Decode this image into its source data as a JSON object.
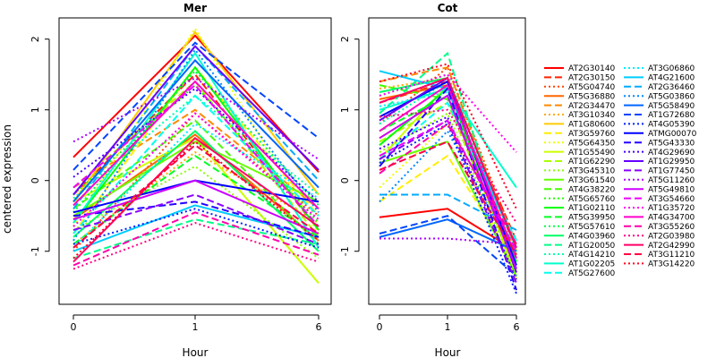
{
  "chart_data": [
    {
      "type": "line",
      "title": "Mer",
      "xlabel": "Hour",
      "ylabel": "centered expression",
      "categories": [
        "0",
        "1",
        "6"
      ],
      "ylim": [
        -1.75,
        2.3
      ],
      "yticks": [
        "-1",
        "0",
        "1",
        "2"
      ],
      "series": [
        {
          "name": "AT2G30140",
          "values": [
            0.33,
            2.05,
            0.12
          ]
        },
        {
          "name": "AT2G30150",
          "values": [
            -0.2,
            1.5,
            -0.7
          ]
        },
        {
          "name": "AT5G04740",
          "values": [
            -1.0,
            0.95,
            -0.5
          ]
        },
        {
          "name": "AT5G36880",
          "values": [
            -0.55,
            0.65,
            -0.85
          ]
        },
        {
          "name": "AT2G34470",
          "values": [
            -0.1,
            1.0,
            -0.4
          ]
        },
        {
          "name": "AT3G10340",
          "values": [
            -0.9,
            0.4,
            -0.6
          ]
        },
        {
          "name": "AT1G80600",
          "values": [
            -0.3,
            2.1,
            -0.2
          ]
        },
        {
          "name": "AT3G59760",
          "values": [
            -0.75,
            1.6,
            -0.5
          ]
        },
        {
          "name": "AT5G64350",
          "values": [
            -0.65,
            2.15,
            -0.75
          ]
        },
        {
          "name": "AT1G55490",
          "values": [
            -0.3,
            0.6,
            -1.45
          ]
        },
        {
          "name": "AT1G62290",
          "values": [
            -0.1,
            1.4,
            -0.8
          ]
        },
        {
          "name": "AT3G45310",
          "values": [
            -0.7,
            0.2,
            -1.1
          ]
        },
        {
          "name": "AT3G61540",
          "values": [
            -0.5,
            0.55,
            -0.3
          ]
        },
        {
          "name": "AT4G38220",
          "values": [
            -0.4,
            0.85,
            -0.9
          ]
        },
        {
          "name": "AT5G65760",
          "values": [
            -0.2,
            1.35,
            -0.6
          ]
        },
        {
          "name": "AT1G02110",
          "values": [
            -0.6,
            1.6,
            -0.7
          ]
        },
        {
          "name": "AT5G39950",
          "values": [
            -0.9,
            0.35,
            -0.8
          ]
        },
        {
          "name": "AT5G57610",
          "values": [
            -0.45,
            1.55,
            -0.35
          ]
        },
        {
          "name": "AT4G03960",
          "values": [
            -0.8,
            0.7,
            -1.0
          ]
        },
        {
          "name": "AT1G20050",
          "values": [
            -1.1,
            -0.55,
            -0.9
          ]
        },
        {
          "name": "AT4G14210",
          "values": [
            -0.25,
            1.2,
            -0.2
          ]
        },
        {
          "name": "AT1G02205",
          "values": [
            -0.6,
            1.8,
            -0.95
          ]
        },
        {
          "name": "AT5G27600",
          "values": [
            -0.75,
            1.2,
            -0.5
          ]
        },
        {
          "name": "AT3G06860",
          "values": [
            -0.95,
            0.8,
            -0.25
          ]
        },
        {
          "name": "AT4G21600",
          "values": [
            -1.0,
            -0.35,
            -0.8
          ]
        },
        {
          "name": "AT2G36460",
          "values": [
            -0.4,
            1.9,
            0.0
          ]
        },
        {
          "name": "AT5G03860",
          "values": [
            -0.85,
            1.85,
            -0.45
          ]
        },
        {
          "name": "AT5G58490",
          "values": [
            -0.3,
            1.7,
            -0.1
          ]
        },
        {
          "name": "AT1G72680",
          "values": [
            0.15,
            1.95,
            0.6
          ]
        },
        {
          "name": "AT4G05390",
          "values": [
            -0.9,
            -0.4,
            -0.95
          ]
        },
        {
          "name": "ATMG00070",
          "values": [
            -0.45,
            0.0,
            -0.3
          ]
        },
        {
          "name": "AT5G43330",
          "values": [
            -0.5,
            -0.3,
            -0.8
          ]
        },
        {
          "name": "AT4G29690",
          "values": [
            0.05,
            1.3,
            -0.3
          ]
        },
        {
          "name": "AT1G29950",
          "values": [
            -0.2,
            1.9,
            0.15
          ]
        },
        {
          "name": "AT1G77450",
          "values": [
            -0.7,
            -0.2,
            -0.9
          ]
        },
        {
          "name": "AT5G11260",
          "values": [
            0.55,
            1.45,
            0.3
          ]
        },
        {
          "name": "AT5G49810",
          "values": [
            -0.55,
            0.0,
            -0.75
          ]
        },
        {
          "name": "AT3G54660",
          "values": [
            -0.1,
            1.35,
            -0.65
          ]
        },
        {
          "name": "AT1G35720",
          "values": [
            -0.65,
            0.95,
            -0.55
          ]
        },
        {
          "name": "AT4G34700",
          "values": [
            -0.35,
            1.4,
            -0.4
          ]
        },
        {
          "name": "AT3G55260",
          "values": [
            -1.2,
            -0.45,
            -1.05
          ]
        },
        {
          "name": "AT2G03980",
          "values": [
            -1.25,
            -0.6,
            -1.15
          ]
        },
        {
          "name": "AT2G42990",
          "values": [
            -1.15,
            0.6,
            -0.65
          ]
        },
        {
          "name": "AT3G11210",
          "values": [
            -0.95,
            0.5,
            -0.75
          ]
        },
        {
          "name": "AT3G14220",
          "values": [
            -1.1,
            0.55,
            -0.85
          ]
        }
      ]
    },
    {
      "type": "line",
      "title": "Cot",
      "xlabel": "Hour",
      "categories": [
        "0",
        "1",
        "6"
      ],
      "ylim": [
        -1.75,
        2.3
      ],
      "yticks": [
        "-1",
        "0",
        "1",
        "2"
      ],
      "series": [
        {
          "name": "AT2G30140",
          "values": [
            -0.52,
            -0.4,
            -1.0
          ]
        },
        {
          "name": "AT2G30150",
          "values": [
            1.1,
            1.4,
            -0.85
          ]
        },
        {
          "name": "AT5G04740",
          "values": [
            0.8,
            1.6,
            -0.9
          ]
        },
        {
          "name": "AT5G36880",
          "values": [
            1.15,
            1.35,
            -1.1
          ]
        },
        {
          "name": "AT2G34470",
          "values": [
            1.4,
            1.6,
            -1.0
          ]
        },
        {
          "name": "AT3G10340",
          "values": [
            1.3,
            1.45,
            -1.05
          ]
        },
        {
          "name": "AT1G80600",
          "values": [
            0.6,
            1.2,
            -1.3
          ]
        },
        {
          "name": "AT3G59760",
          "values": [
            -0.3,
            0.35,
            -1.2
          ]
        },
        {
          "name": "AT5G64350",
          "values": [
            -0.1,
            0.8,
            -1.35
          ]
        },
        {
          "name": "AT1G55490",
          "values": [
            0.3,
            1.35,
            -1.4
          ]
        },
        {
          "name": "AT1G62290",
          "values": [
            0.55,
            1.1,
            -1.25
          ]
        },
        {
          "name": "AT3G45310",
          "values": [
            0.4,
            0.95,
            -1.3
          ]
        },
        {
          "name": "AT3G61540",
          "values": [
            0.25,
            0.55,
            -1.35
          ]
        },
        {
          "name": "AT4G38220",
          "values": [
            1.35,
            1.15,
            -1.05
          ]
        },
        {
          "name": "AT5G65760",
          "values": [
            0.9,
            1.4,
            -1.2
          ]
        },
        {
          "name": "AT1G02110",
          "values": [
            0.5,
            1.3,
            -1.15
          ]
        },
        {
          "name": "AT5G39950",
          "values": [
            0.7,
            1.2,
            -1.1
          ]
        },
        {
          "name": "AT5G57610",
          "values": [
            1.2,
            1.5,
            -1.0
          ]
        },
        {
          "name": "AT4G03960",
          "values": [
            1.25,
            1.45,
            -0.95
          ]
        },
        {
          "name": "AT1G20050",
          "values": [
            0.95,
            1.8,
            -1.25
          ]
        },
        {
          "name": "AT4G14210",
          "values": [
            0.8,
            1.4,
            -1.15
          ]
        },
        {
          "name": "AT1G02205",
          "values": [
            1.0,
            1.3,
            -0.1
          ]
        },
        {
          "name": "AT5G27600",
          "values": [
            0.3,
            1.1,
            -0.85
          ]
        },
        {
          "name": "AT3G06860",
          "values": [
            1.05,
            1.25,
            -0.9
          ]
        },
        {
          "name": "AT4G21600",
          "values": [
            1.55,
            1.3,
            -0.95
          ]
        },
        {
          "name": "AT2G36460",
          "values": [
            -0.2,
            -0.2,
            -0.7
          ]
        },
        {
          "name": "AT5G03860",
          "values": [
            -0.3,
            0.7,
            -1.1
          ]
        },
        {
          "name": "AT5G58490",
          "values": [
            -0.8,
            -0.55,
            -1.0
          ]
        },
        {
          "name": "AT1G72680",
          "values": [
            -0.75,
            -0.5,
            -1.35
          ]
        },
        {
          "name": "AT4G05390",
          "values": [
            0.25,
            0.8,
            -1.6
          ]
        },
        {
          "name": "ATMG00070",
          "values": [
            0.9,
            1.4,
            -1.2
          ]
        },
        {
          "name": "AT5G43330",
          "values": [
            0.2,
            1.3,
            -1.55
          ]
        },
        {
          "name": "AT4G29690",
          "values": [
            0.45,
            0.9,
            -1.4
          ]
        },
        {
          "name": "AT1G29950",
          "values": [
            0.85,
            1.45,
            -1.3
          ]
        },
        {
          "name": "AT1G77450",
          "values": [
            0.3,
            0.85,
            -1.45
          ]
        },
        {
          "name": "AT5G11260",
          "values": [
            -0.82,
            -0.82,
            -0.9
          ]
        },
        {
          "name": "AT5G49810",
          "values": [
            0.6,
            1.2,
            -1.25
          ]
        },
        {
          "name": "AT3G54660",
          "values": [
            0.35,
            0.85,
            -1.0
          ]
        },
        {
          "name": "AT1G35720",
          "values": [
            1.2,
            1.5,
            0.4
          ]
        },
        {
          "name": "AT4G34700",
          "values": [
            0.7,
            1.35,
            -1.1
          ]
        },
        {
          "name": "AT3G55260",
          "values": [
            0.1,
            0.8,
            -0.9
          ]
        },
        {
          "name": "AT2G03980",
          "values": [
            0.9,
            1.0,
            -0.6
          ]
        },
        {
          "name": "AT2G42990",
          "values": [
            1.1,
            1.45,
            -0.95
          ]
        },
        {
          "name": "AT3G11210",
          "values": [
            0.15,
            0.55,
            -1.05
          ]
        },
        {
          "name": "AT3G14220",
          "values": [
            1.4,
            1.65,
            -0.4
          ]
        }
      ]
    }
  ],
  "legend": {
    "placement": "right",
    "entries": [
      {
        "name": "AT2G30140",
        "color": "#FF0000",
        "dash": "solid"
      },
      {
        "name": "AT2G30150",
        "color": "#FF2200",
        "dash": "dashed"
      },
      {
        "name": "AT5G04740",
        "color": "#FF4400",
        "dash": "dotted"
      },
      {
        "name": "AT5G36880",
        "color": "#FF6600",
        "dash": "solid"
      },
      {
        "name": "AT2G34470",
        "color": "#FF8800",
        "dash": "dashed"
      },
      {
        "name": "AT3G10340",
        "color": "#FFAA00",
        "dash": "dotted"
      },
      {
        "name": "AT1G80600",
        "color": "#FFCC00",
        "dash": "solid"
      },
      {
        "name": "AT3G59760",
        "color": "#FFEE00",
        "dash": "dashed"
      },
      {
        "name": "AT5G64350",
        "color": "#EEFF00",
        "dash": "dotted"
      },
      {
        "name": "AT1G55490",
        "color": "#CCFF00",
        "dash": "solid"
      },
      {
        "name": "AT1G62290",
        "color": "#AAFF00",
        "dash": "dashed"
      },
      {
        "name": "AT3G45310",
        "color": "#88FF00",
        "dash": "dotted"
      },
      {
        "name": "AT3G61540",
        "color": "#66FF00",
        "dash": "solid"
      },
      {
        "name": "AT4G38220",
        "color": "#44FF00",
        "dash": "dashed"
      },
      {
        "name": "AT5G65760",
        "color": "#22FF00",
        "dash": "dotted"
      },
      {
        "name": "AT1G02110",
        "color": "#00FF00",
        "dash": "solid"
      },
      {
        "name": "AT5G39950",
        "color": "#00FF22",
        "dash": "dashed"
      },
      {
        "name": "AT5G57610",
        "color": "#00FF44",
        "dash": "dotted"
      },
      {
        "name": "AT4G03960",
        "color": "#00FF66",
        "dash": "solid"
      },
      {
        "name": "AT1G20050",
        "color": "#00FF88",
        "dash": "dashed"
      },
      {
        "name": "AT4G14210",
        "color": "#00FFAA",
        "dash": "dotted"
      },
      {
        "name": "AT1G02205",
        "color": "#00FFCC",
        "dash": "solid"
      },
      {
        "name": "AT5G27600",
        "color": "#00FFEE",
        "dash": "dashed"
      },
      {
        "name": "AT3G06860",
        "color": "#00EEFF",
        "dash": "dotted"
      },
      {
        "name": "AT4G21600",
        "color": "#00CCFF",
        "dash": "solid"
      },
      {
        "name": "AT2G36460",
        "color": "#00AAFF",
        "dash": "dashed"
      },
      {
        "name": "AT5G03860",
        "color": "#0088FF",
        "dash": "dotted"
      },
      {
        "name": "AT5G58490",
        "color": "#0066FF",
        "dash": "solid"
      },
      {
        "name": "AT1G72680",
        "color": "#0044FF",
        "dash": "dashed"
      },
      {
        "name": "AT4G05390",
        "color": "#0022FF",
        "dash": "dotted"
      },
      {
        "name": "ATMG00070",
        "color": "#0000FF",
        "dash": "solid"
      },
      {
        "name": "AT5G43330",
        "color": "#2200FF",
        "dash": "dashed"
      },
      {
        "name": "AT4G29690",
        "color": "#4400FF",
        "dash": "dotted"
      },
      {
        "name": "AT1G29950",
        "color": "#6600FF",
        "dash": "solid"
      },
      {
        "name": "AT1G77450",
        "color": "#8800FF",
        "dash": "dashed"
      },
      {
        "name": "AT5G11260",
        "color": "#AA00FF",
        "dash": "dotted"
      },
      {
        "name": "AT5G49810",
        "color": "#CC00FF",
        "dash": "solid"
      },
      {
        "name": "AT3G54660",
        "color": "#EE00FF",
        "dash": "dashed"
      },
      {
        "name": "AT1G35720",
        "color": "#FF00EE",
        "dash": "dotted"
      },
      {
        "name": "AT4G34700",
        "color": "#FF00CC",
        "dash": "solid"
      },
      {
        "name": "AT3G55260",
        "color": "#FF00AA",
        "dash": "dashed"
      },
      {
        "name": "AT2G03980",
        "color": "#FF0088",
        "dash": "dotted"
      },
      {
        "name": "AT2G42990",
        "color": "#FF0066",
        "dash": "solid"
      },
      {
        "name": "AT3G11210",
        "color": "#FF0044",
        "dash": "dashed"
      },
      {
        "name": "AT3G14220",
        "color": "#FF0022",
        "dash": "dotted"
      }
    ]
  }
}
